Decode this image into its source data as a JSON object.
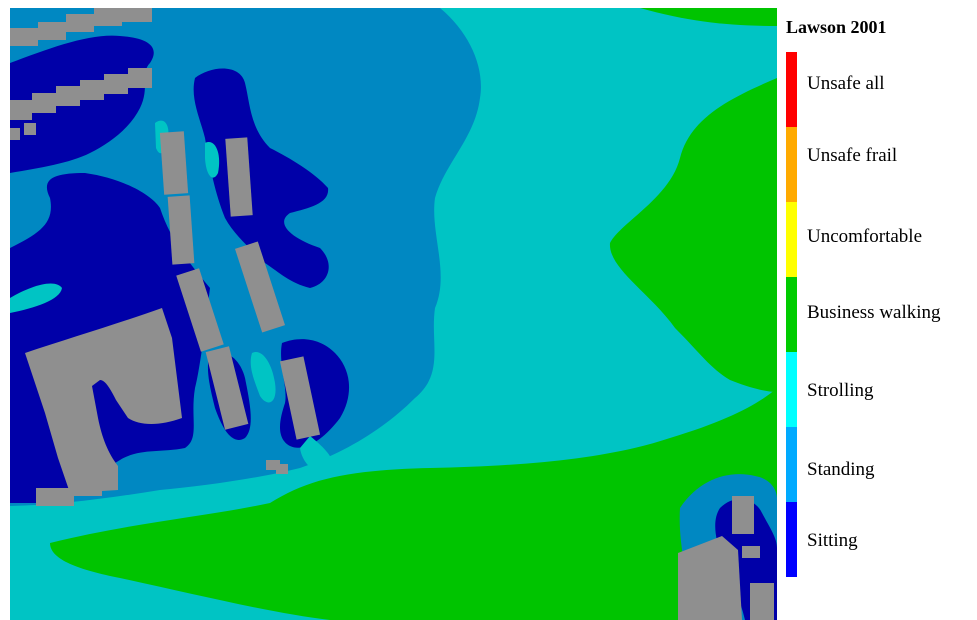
{
  "legend": {
    "title": "Lawson 2001",
    "items": [
      {
        "label": "Unsafe all",
        "color": "#ff0000"
      },
      {
        "label": "Unsafe frail",
        "color": "#ffaa00"
      },
      {
        "label": "Uncomfortable",
        "color": "#ffff00"
      },
      {
        "label": "Business walking",
        "color": "#00cc00"
      },
      {
        "label": "Strolling",
        "color": "#00ffff"
      },
      {
        "label": "Standing",
        "color": "#00aaff"
      },
      {
        "label": "Sitting",
        "color": "#0000ff"
      }
    ]
  },
  "map_colors": {
    "sitting": "#0000a8",
    "standing": "#0088c2",
    "strolling": "#00c4c4",
    "business_walking": "#00c400",
    "building": "#8f8f8f"
  }
}
